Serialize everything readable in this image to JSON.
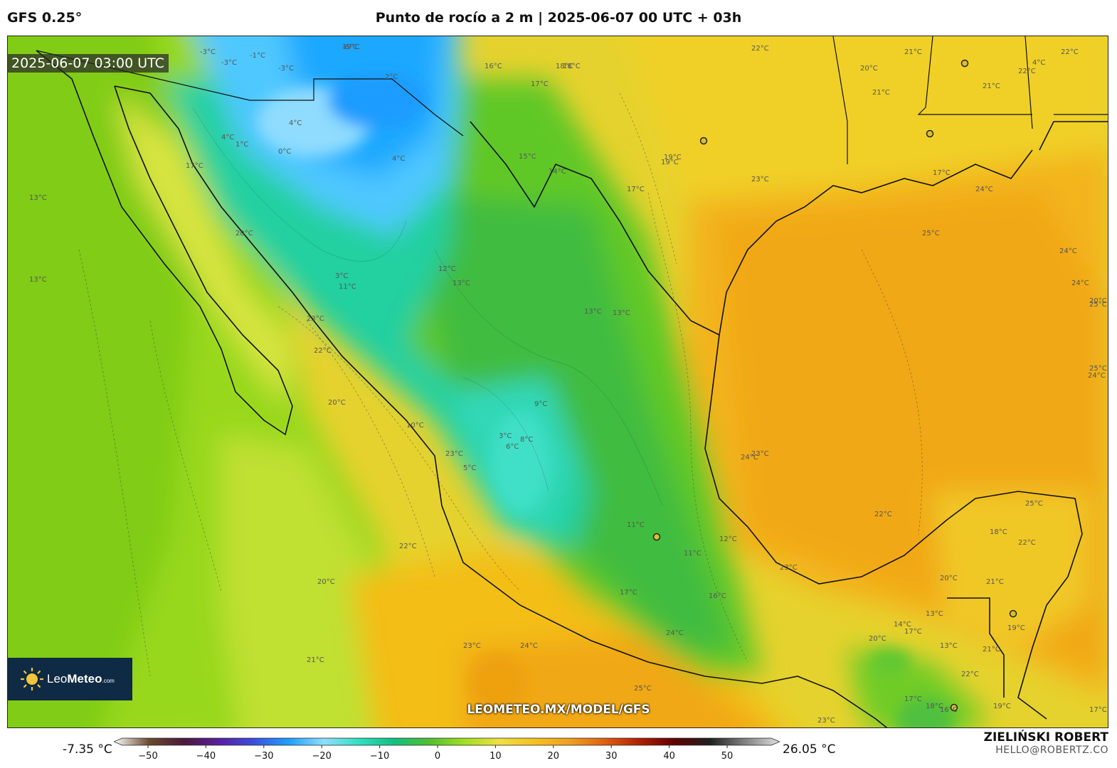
{
  "header": {
    "model": "GFS 0.25°",
    "title": "Punto de rocío a 2 m | 2025-06-07 00 UTC + 03h"
  },
  "map": {
    "timestamp": "2025-06-07 03:00 UTC",
    "watermark_url": "LEOMETEO.MX/MODEL/GFS",
    "logo": {
      "brand_light": "Leo",
      "brand_bold": "Meteo",
      "suffix": ".com"
    },
    "contour_labels": [
      "-6°C",
      "-3°C",
      "-3°C",
      "-1°C",
      "-3°C",
      "2°C",
      "4°C",
      "0°C",
      "1°C",
      "4°C",
      "4°C",
      "16°C",
      "18°C",
      "17°C",
      "15°C",
      "14°C",
      "17°C",
      "19°C",
      "22°C",
      "21°C",
      "20°C",
      "21°C",
      "21°C",
      "22°C",
      "22°C",
      "23°C",
      "24°C",
      "25°C",
      "24°C",
      "24°C",
      "25°C",
      "24°C",
      "25°C",
      "23°C",
      "24°C",
      "22°C",
      "25°C",
      "22°C",
      "20°C",
      "21°C",
      "19°C",
      "20°C",
      "18°C",
      "17°C",
      "17°C",
      "13°C",
      "13°C",
      "12°C",
      "13°C",
      "11°C",
      "13°C",
      "13°C",
      "11°C",
      "12°C",
      "11°C",
      "10°C",
      "9°C",
      "8°C",
      "6°C",
      "5°C",
      "3°C",
      "3°C",
      "4°C",
      "17°C",
      "16°C",
      "17°C",
      "14°C",
      "13°C",
      "13°C",
      "20°C",
      "23°C",
      "22°C",
      "20°C",
      "23°C",
      "22°C",
      "20°C",
      "21°C",
      "23°C",
      "24°C",
      "25°C",
      "24°C",
      "23°C",
      "23°C",
      "21°C",
      "18°C",
      "19°C",
      "20°C",
      "22°C",
      "17°C",
      "18°C",
      "16°C",
      "19°C",
      "17°C",
      "19°C"
    ]
  },
  "colorbar": {
    "min_label": "-7.35 °C",
    "max_label": "26.05 °C",
    "ticks": [
      "−50",
      "−40",
      "−30",
      "−20",
      "−10",
      "0",
      "10",
      "20",
      "30",
      "40",
      "50"
    ],
    "colors": [
      "#ffffff",
      "#6b4a2e",
      "#4a1a3a",
      "#5a1fa0",
      "#3b4fe0",
      "#1fa0ff",
      "#8fdfff",
      "#30e0c0",
      "#10c080",
      "#50c030",
      "#a0e020",
      "#f0e040",
      "#f8c020",
      "#f0a020",
      "#e06010",
      "#b02000",
      "#600000",
      "#202020",
      "#808080",
      "#e0e0e0"
    ]
  },
  "author": {
    "name": "ZIELIŃSKI ROBERT",
    "email": "HELLO@ROBERTZ.CO"
  }
}
